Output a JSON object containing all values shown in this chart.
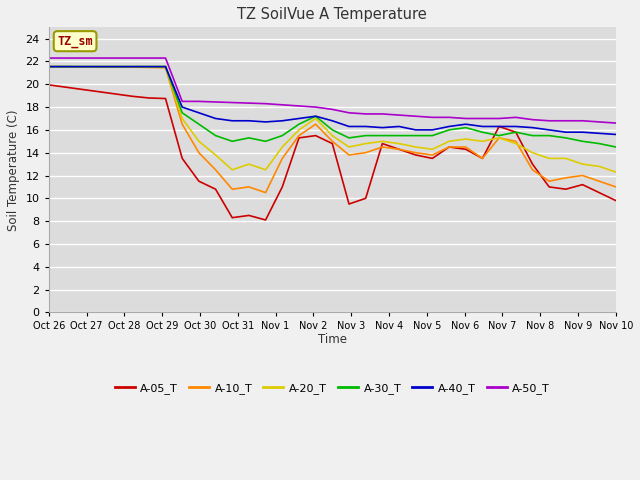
{
  "title": "TZ SoilVue A Temperature",
  "ylabel": "Soil Temperature (C)",
  "xlabel": "Time",
  "ylim": [
    0,
    25
  ],
  "yticks": [
    0,
    2,
    4,
    6,
    8,
    10,
    12,
    14,
    16,
    18,
    20,
    22,
    24
  ],
  "plot_bg_color": "#dcdcdc",
  "fig_bg_color": "#f0f0f0",
  "legend_label": "TZ_sm",
  "xtick_labels": [
    "Oct 26",
    "Oct 27",
    "Oct 28",
    "Oct 29",
    "Oct 30",
    "Oct 31",
    "Nov 1",
    "Nov 2",
    "Nov 3",
    "Nov 4",
    "Nov 5",
    "Nov 6",
    "Nov 7",
    "Nov 8",
    "Nov 9",
    "Nov 10"
  ],
  "series": {
    "A-05_T": {
      "color": "#cc0000",
      "data": [
        19.95,
        19.75,
        19.55,
        19.35,
        19.15,
        18.95,
        18.8,
        18.75,
        13.5,
        11.5,
        10.8,
        8.3,
        8.5,
        8.1,
        11.0,
        15.3,
        15.5,
        14.8,
        9.5,
        10.0,
        14.8,
        14.3,
        13.8,
        13.5,
        14.5,
        14.3,
        13.5,
        16.3,
        15.8,
        13.0,
        11.0,
        10.8,
        11.2,
        10.5,
        9.8
      ]
    },
    "A-10_T": {
      "color": "#ff8800",
      "data": [
        21.55,
        21.55,
        21.52,
        21.5,
        21.5,
        21.5,
        21.48,
        21.45,
        16.5,
        14.0,
        12.5,
        10.8,
        11.0,
        10.5,
        13.5,
        15.5,
        16.5,
        15.0,
        13.8,
        14.0,
        14.5,
        14.3,
        14.0,
        13.8,
        14.5,
        14.5,
        13.5,
        15.3,
        15.0,
        12.5,
        11.5,
        11.8,
        12.0,
        11.5,
        11.0
      ]
    },
    "A-20_T": {
      "color": "#ddcc00",
      "data": [
        21.55,
        21.55,
        21.55,
        21.55,
        21.55,
        21.55,
        21.55,
        21.55,
        17.0,
        15.0,
        13.8,
        12.5,
        13.0,
        12.5,
        14.5,
        16.0,
        17.0,
        15.5,
        14.5,
        14.8,
        15.0,
        14.8,
        14.5,
        14.3,
        15.0,
        15.2,
        15.0,
        15.3,
        14.8,
        14.0,
        13.5,
        13.5,
        13.0,
        12.8,
        12.3
      ]
    },
    "A-30_T": {
      "color": "#00bb00",
      "data": [
        21.55,
        21.55,
        21.55,
        21.55,
        21.55,
        21.55,
        21.55,
        21.55,
        17.5,
        16.5,
        15.5,
        15.0,
        15.3,
        15.0,
        15.5,
        16.5,
        17.2,
        16.0,
        15.3,
        15.5,
        15.5,
        15.5,
        15.5,
        15.5,
        16.0,
        16.2,
        15.8,
        15.5,
        15.8,
        15.5,
        15.5,
        15.3,
        15.0,
        14.8,
        14.5
      ]
    },
    "A-40_T": {
      "color": "#0000cc",
      "data": [
        21.55,
        21.55,
        21.55,
        21.55,
        21.55,
        21.55,
        21.55,
        21.55,
        18.0,
        17.5,
        17.0,
        16.8,
        16.8,
        16.7,
        16.8,
        17.0,
        17.2,
        16.8,
        16.3,
        16.3,
        16.2,
        16.3,
        16.0,
        16.0,
        16.3,
        16.5,
        16.3,
        16.3,
        16.3,
        16.2,
        16.0,
        15.8,
        15.8,
        15.7,
        15.6
      ]
    },
    "A-50_T": {
      "color": "#aa00cc",
      "data": [
        22.3,
        22.3,
        22.3,
        22.3,
        22.3,
        22.3,
        22.3,
        22.3,
        18.5,
        18.5,
        18.45,
        18.4,
        18.35,
        18.3,
        18.2,
        18.1,
        18.0,
        17.8,
        17.5,
        17.4,
        17.4,
        17.3,
        17.2,
        17.1,
        17.1,
        17.0,
        17.0,
        17.0,
        17.1,
        16.9,
        16.8,
        16.8,
        16.8,
        16.7,
        16.6
      ]
    }
  }
}
